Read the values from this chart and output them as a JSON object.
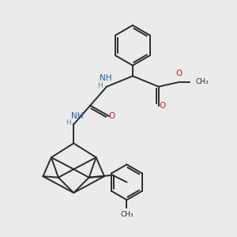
{
  "background_color": "#ebebeb",
  "bond_color": "#2c2c2c",
  "N_color": "#1a5faa",
  "O_color": "#cc2222",
  "H_color": "#5a8a8a",
  "line_width": 1.4,
  "figsize": [
    3.0,
    3.0
  ],
  "dpi": 100,
  "xlim": [
    0,
    10
  ],
  "ylim": [
    0,
    10
  ]
}
